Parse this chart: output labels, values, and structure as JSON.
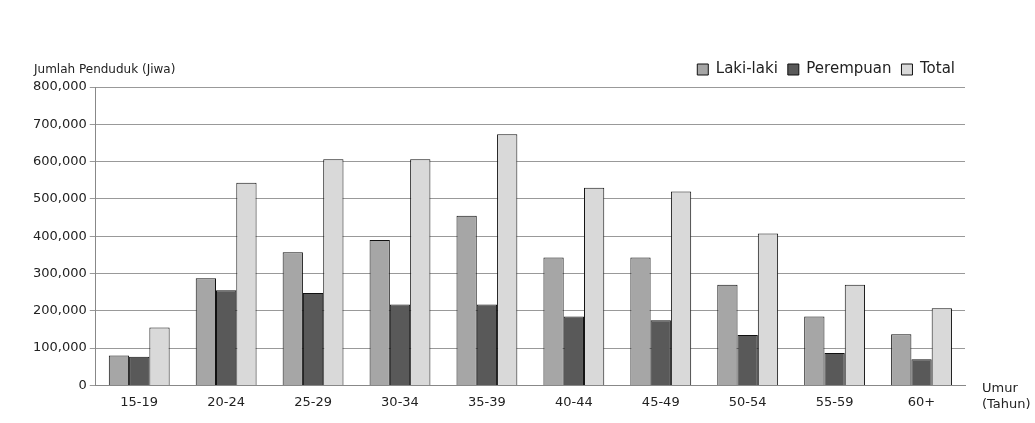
{
  "chart_data": {
    "type": "bar",
    "ylabel": "Jumlah Penduduk (Jiwa)",
    "xlabel": "Umur (Tahun)",
    "categories": [
      "15-19",
      "20-24",
      "25-29",
      "30-34",
      "35-39",
      "40-44",
      "45-49",
      "50-54",
      "55-59",
      "60+"
    ],
    "series": [
      {
        "name": "Laki-laki",
        "color": "#a6a6a6",
        "values": [
          80000,
          287000,
          357000,
          390000,
          455000,
          343000,
          343000,
          270000,
          185000,
          137000
        ]
      },
      {
        "name": "Perempuan",
        "color": "#595959",
        "values": [
          77000,
          255000,
          248000,
          217000,
          217000,
          185000,
          175000,
          135000,
          87000,
          70000
        ]
      },
      {
        "name": "Total",
        "color": "#d9d9d9",
        "values": [
          155000,
          543000,
          606000,
          606000,
          673000,
          530000,
          520000,
          407000,
          270000,
          207000
        ]
      }
    ],
    "ylim": [
      0,
      800000
    ],
    "yticks": [
      {
        "value": 0,
        "label": "0"
      },
      {
        "value": 100000,
        "label": "100,000"
      },
      {
        "value": 200000,
        "label": "200,000"
      },
      {
        "value": 300000,
        "label": "300,000"
      },
      {
        "value": 400000,
        "label": "400,000"
      },
      {
        "value": 500000,
        "label": "500,000"
      },
      {
        "value": 600000,
        "label": "600,000"
      },
      {
        "value": 700000,
        "label": "700,000"
      },
      {
        "value": 800000,
        "label": "800,000"
      }
    ],
    "grid": "y",
    "legend": "top right"
  }
}
